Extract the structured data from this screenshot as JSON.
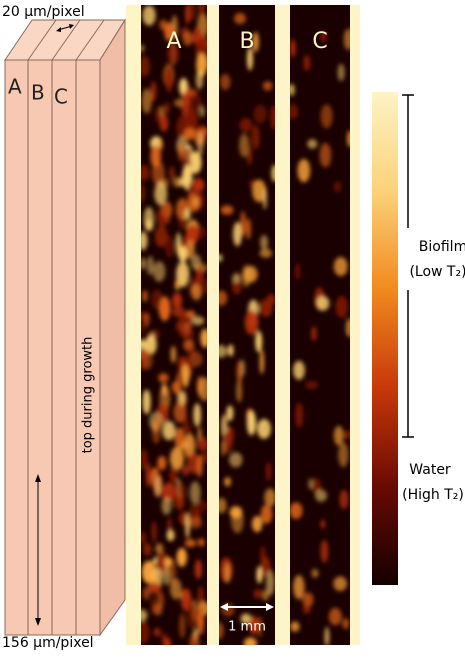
{
  "block": {
    "top_resolution": "20 μm/pixel",
    "bottom_resolution": "156 μm/pixel",
    "orientation_label": "top during growth",
    "slices": [
      "A",
      "B",
      "C"
    ]
  },
  "panels": [
    {
      "label": "A"
    },
    {
      "label": "B"
    },
    {
      "label": "C"
    }
  ],
  "scale_bar": "1 mm",
  "colorbar": {
    "top_label": "Biofilm",
    "top_sublabel": "(Low T₂)",
    "bottom_label": "Water",
    "bottom_sublabel": "(High T₂)"
  }
}
